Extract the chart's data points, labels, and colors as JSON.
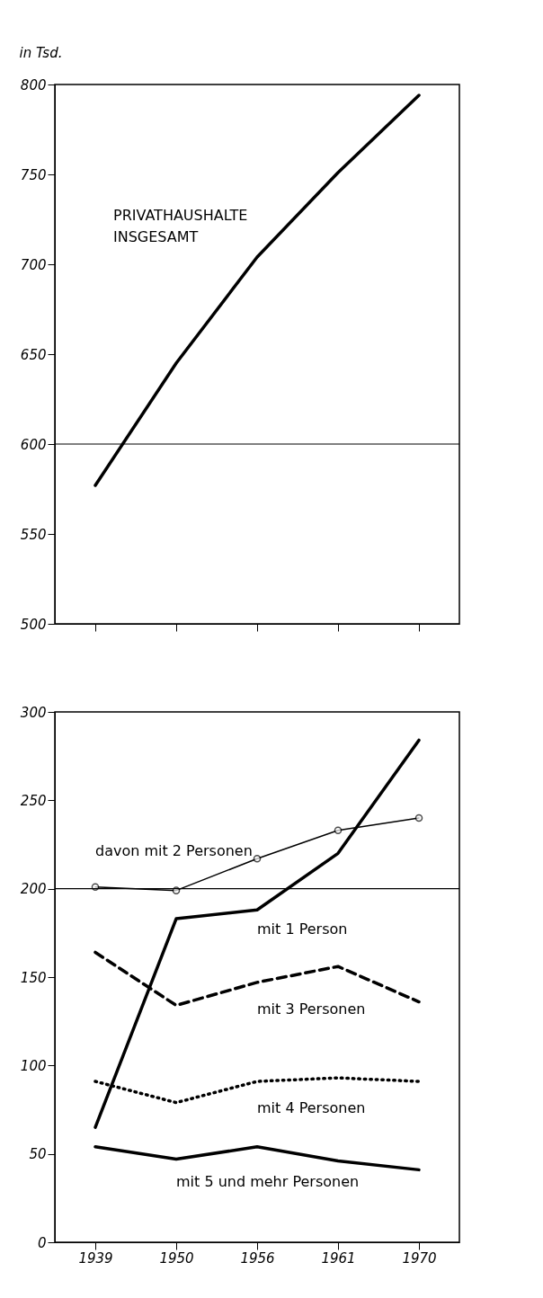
{
  "chart_data": [
    {
      "type": "line",
      "ylabel": "in Tsd.",
      "categories": [
        null,
        null,
        null,
        null,
        null
      ],
      "ylim": [
        500,
        800
      ],
      "yticks": [
        500,
        550,
        600,
        650,
        700,
        750,
        800
      ],
      "tick_labels": "y",
      "ref_lines": [
        {
          "axis": "y",
          "value": 600
        }
      ],
      "series": [
        {
          "name": "PRIVATHAUSHALTE INSGESAMT",
          "color": "#000000",
          "line_style": "solid",
          "values": [
            577,
            645,
            704,
            751,
            794
          ]
        }
      ]
    },
    {
      "type": "line",
      "categories": [
        "1939",
        "1950",
        "1956",
        "1961",
        "1970"
      ],
      "ylim": [
        0,
        300
      ],
      "yticks": [
        0,
        50,
        100,
        150,
        200,
        250,
        300
      ],
      "ref_lines": [
        {
          "axis": "y",
          "value": 200
        }
      ],
      "series": [
        {
          "name": "davon mit 2 Personen",
          "color": "#000000",
          "line_style": "solid",
          "marker": "circle",
          "values": [
            201,
            199,
            217,
            233,
            240
          ]
        },
        {
          "name": "mit 1 Person",
          "color": "#000000",
          "line_style": "solid",
          "values": [
            65,
            183,
            188,
            220,
            284
          ]
        },
        {
          "name": "mit 3 Personen",
          "color": "#000000",
          "line_style": "dashed",
          "values": [
            164,
            134,
            147,
            156,
            136
          ]
        },
        {
          "name": "mit 4 Personen",
          "color": "#000000",
          "line_style": "dotted",
          "values": [
            91,
            79,
            91,
            93,
            91
          ]
        },
        {
          "name": "mit 5 und mehr Personen",
          "color": "#000000",
          "line_style": "solid",
          "values": [
            54,
            47,
            54,
            46,
            41
          ]
        }
      ]
    }
  ]
}
